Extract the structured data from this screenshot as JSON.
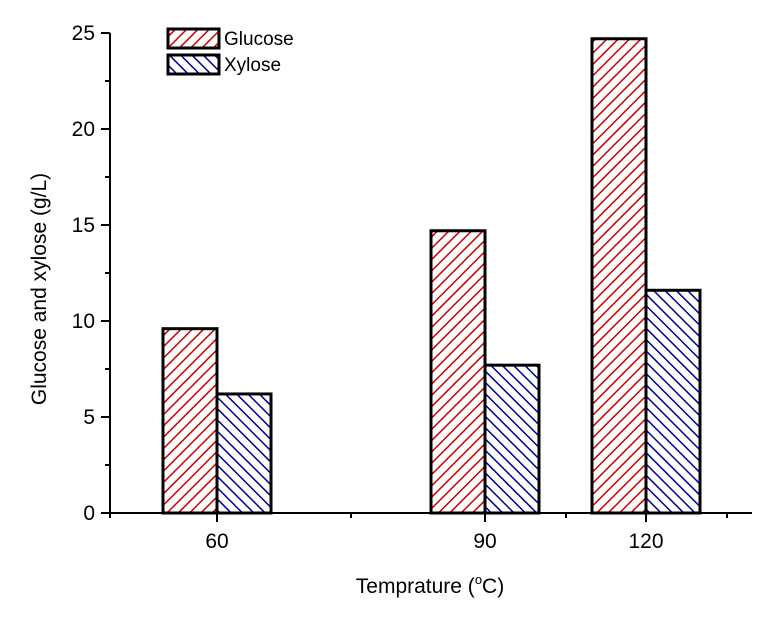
{
  "chart_data": {
    "type": "bar",
    "categories": [
      "60",
      "90",
      "120"
    ],
    "series": [
      {
        "name": "Glucose",
        "values": [
          9.6,
          14.7,
          24.7
        ],
        "color": "#cc0000",
        "pattern": "diagonal-forward"
      },
      {
        "name": "Xylose",
        "values": [
          6.2,
          7.7,
          11.6
        ],
        "color": "#000099",
        "pattern": "diagonal-backward"
      }
    ],
    "xlabel_main": "Temprature (",
    "xlabel_sup": "o",
    "xlabel_end": "C)",
    "ylabel": "Glucose and xylose (g/L)",
    "yticks": [
      0,
      5,
      10,
      15,
      20,
      25
    ],
    "ylim": [
      0,
      25
    ],
    "grid": false,
    "legend_position": "top-left"
  }
}
